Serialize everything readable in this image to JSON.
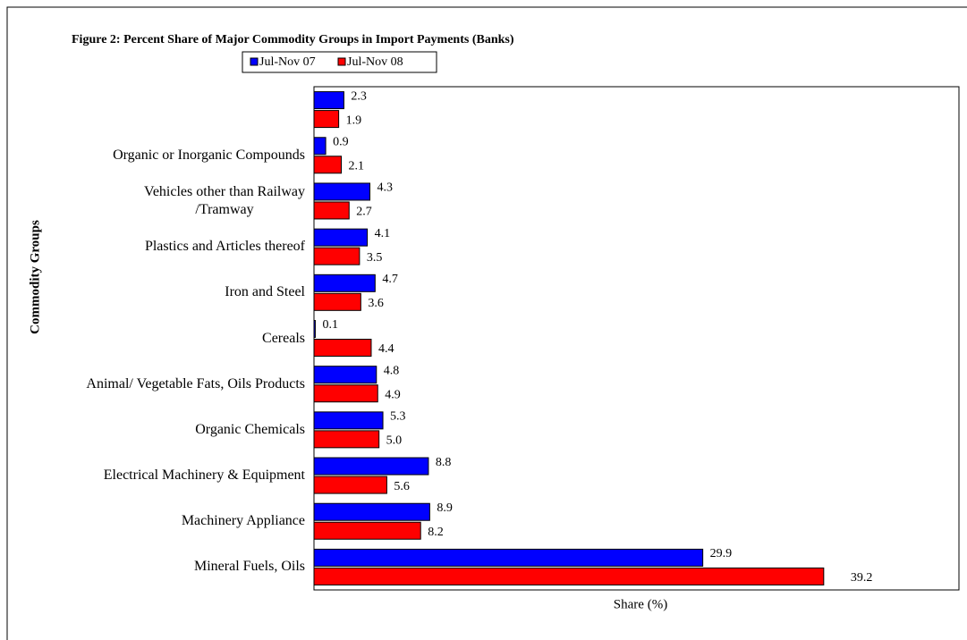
{
  "chart_data": {
    "type": "hbar",
    "title": "Figure 2: Percent  Share of Major  Commodity Groups in Import Payments  (Banks)",
    "xlabel": "Share (%)",
    "ylabel": "Commodity Groups",
    "categories": [
      null,
      "Organic or Inorganic Compounds",
      "Vehicles other than Railway\n/Tramway",
      "Plastics and Articles thereof",
      "Iron and Steel",
      "Cereals",
      "Animal/ Vegetable Fats, Oils  Products",
      "Organic Chemicals",
      "Electrical Machinery & Equipment",
      "Machinery Appliance",
      "Mineral Fuels, Oils"
    ],
    "series": [
      {
        "name": "Jul-Nov 07",
        "color": "#0000ff",
        "values": [
          2.3,
          0.9,
          4.3,
          4.1,
          4.7,
          0.1,
          4.8,
          5.3,
          8.8,
          8.9,
          29.9
        ],
        "value_labels": [
          "2.3",
          "0.9",
          "4.3",
          "4.1",
          "4.7",
          "0.1",
          "4.8",
          "5.3",
          "8.8",
          "8.9",
          "29.9"
        ]
      },
      {
        "name": "Jul-Nov 08",
        "color": "#ff0000",
        "values": [
          1.9,
          2.1,
          2.7,
          3.5,
          3.6,
          4.4,
          4.9,
          5.0,
          5.6,
          8.2,
          39.2
        ],
        "value_labels": [
          "1.9",
          "2.1",
          "2.7",
          "3.5",
          "3.6",
          "4.4",
          "4.9",
          "5.0",
          "5.6",
          "8.2",
          "39.2"
        ]
      }
    ],
    "xlim": [
      0,
      49.6
    ]
  }
}
